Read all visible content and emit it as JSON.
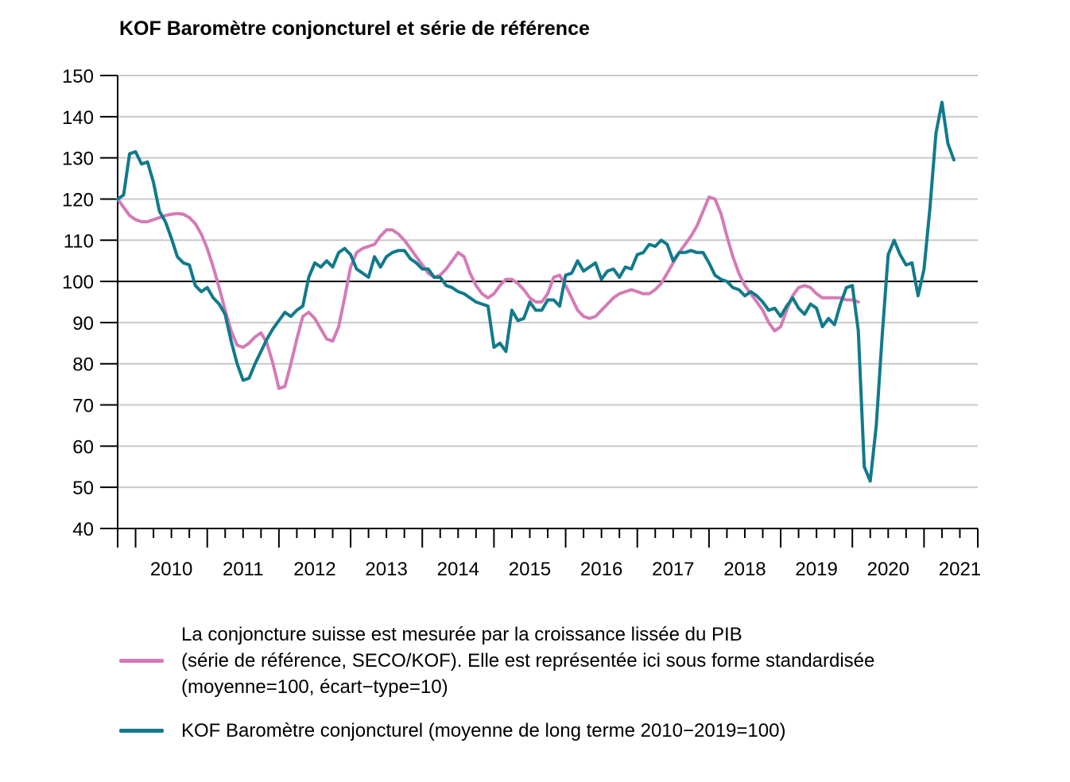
{
  "chart_data": {
    "type": "line",
    "title": "KOF Baromètre conjoncturel et série de référence",
    "xlabel": "",
    "ylabel": "",
    "ylim": [
      40,
      150
    ],
    "yticks": [
      40,
      50,
      60,
      70,
      80,
      90,
      100,
      110,
      120,
      130,
      140,
      150
    ],
    "reference_line": 100,
    "grid": true,
    "x_start": 2009.75,
    "x_end": 2021.75,
    "year_labels": [
      "2010",
      "2011",
      "2012",
      "2013",
      "2014",
      "2015",
      "2016",
      "2017",
      "2018",
      "2019",
      "2020",
      "2021"
    ],
    "legend_position": "bottom",
    "series": [
      {
        "name": "La conjoncture suisse est mesurée par la croissance lissée du PIB\n(série de référence, SECO/KOF). Elle est représentée ici sous forme standardisée\n(moyenne=100, écart−type=10)",
        "color": "#d47bb6",
        "start": 2009.75,
        "step": 0.0833333,
        "values": [
          120,
          118,
          116,
          115,
          114.5,
          114.5,
          115,
          115.5,
          116,
          116.3,
          116.5,
          116.3,
          115.5,
          114,
          111.5,
          108,
          103.5,
          98.5,
          93,
          88,
          84.5,
          84,
          85,
          86.5,
          87.5,
          85,
          80,
          74,
          74.5,
          80,
          86,
          91.5,
          92.5,
          91,
          88.5,
          86,
          85.5,
          89,
          96,
          103.5,
          107,
          108,
          108.5,
          109,
          111,
          112.5,
          112.5,
          111.5,
          110,
          108,
          106,
          104,
          102,
          101,
          101.5,
          103,
          105,
          107,
          106,
          102,
          99,
          97,
          96,
          97,
          99,
          100.5,
          100.5,
          99.5,
          98,
          96,
          95,
          95,
          97,
          101,
          101.5,
          99,
          96,
          93,
          91.5,
          91,
          91.5,
          93,
          94.5,
          96,
          97,
          97.5,
          98,
          97.5,
          97,
          97,
          98,
          99.5,
          102,
          104.5,
          107,
          109,
          111,
          113.5,
          117,
          120.5,
          120,
          116.5,
          111,
          106,
          102,
          99,
          97,
          95,
          93,
          90,
          88,
          89,
          93,
          96.5,
          98.5,
          99,
          98.5,
          97,
          96,
          96,
          96,
          96,
          95.5,
          95.5,
          95
        ]
      },
      {
        "name": "KOF Baromètre conjoncturel (moyenne de long terme 2010−2019=100)",
        "color": "#117a8b",
        "start": 2009.75,
        "step": 0.0833333,
        "values": [
          120,
          121,
          131,
          131.5,
          128.5,
          129,
          124,
          117,
          114.5,
          110.5,
          106,
          104.5,
          104,
          99,
          97.5,
          98.5,
          96,
          94.5,
          92,
          85.5,
          80,
          76,
          76.5,
          80,
          83,
          86,
          88.5,
          90.5,
          92.5,
          91.5,
          93,
          94,
          101,
          104.5,
          103.5,
          105,
          103.5,
          107,
          108,
          106.5,
          103,
          102,
          101,
          106,
          103.5,
          106,
          107,
          107.5,
          107.5,
          105.5,
          104.5,
          103,
          103,
          101,
          101,
          99,
          98.5,
          97.5,
          97,
          96,
          95,
          94.5,
          94,
          84,
          85,
          83,
          93,
          90.5,
          91,
          95,
          93,
          93,
          95.5,
          95.5,
          94,
          101.5,
          102,
          105,
          102.5,
          103.5,
          104.5,
          100.5,
          102.5,
          103,
          101,
          103.5,
          103,
          106.5,
          107,
          109,
          108.5,
          110,
          109,
          105,
          107,
          107,
          107.5,
          107,
          107,
          104.5,
          101.5,
          100.5,
          100,
          98.5,
          98,
          96.5,
          97.5,
          96.5,
          95,
          93,
          93.5,
          91.5,
          94,
          96,
          93.5,
          92,
          94.5,
          93.5,
          89,
          91,
          89.5,
          94.5,
          98.5,
          99,
          88,
          55,
          51.5,
          65,
          87,
          106.5,
          110,
          106.5,
          104,
          104.5,
          96.5,
          103,
          118,
          136,
          143.5,
          133.5,
          129.5
        ]
      }
    ]
  }
}
